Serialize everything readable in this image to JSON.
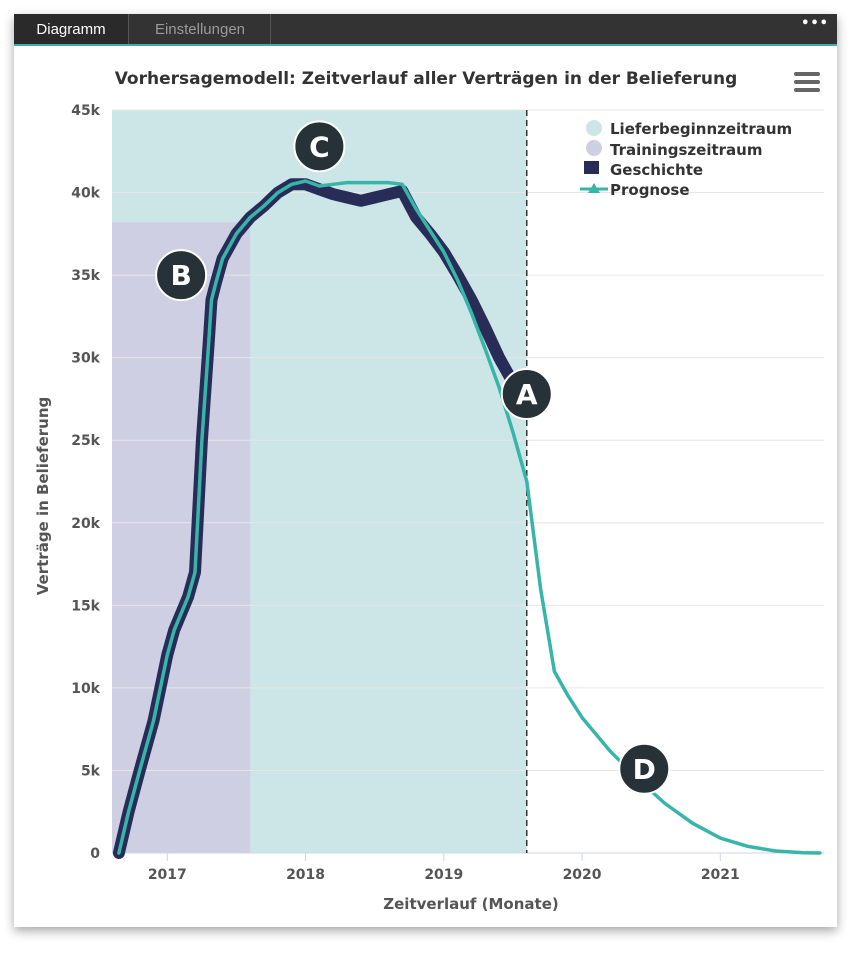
{
  "tabs": {
    "active_label": "Diagramm",
    "inactive_label": "Einstellungen",
    "more_icon": "•••"
  },
  "chart_data": {
    "type": "line",
    "title": "Vorhersagemodell: Zeitverlauf aller Verträgen in der Belieferung",
    "xlabel": "Zeitverlauf (Monate)",
    "ylabel": "Verträge in Belieferung",
    "xlim": [
      2016.6,
      2021.75
    ],
    "ylim": [
      0,
      45000
    ],
    "x_ticks": [
      "2017",
      "2018",
      "2019",
      "2020",
      "2021"
    ],
    "y_ticks": [
      "0",
      "5k",
      "10k",
      "15k",
      "20k",
      "25k",
      "30k",
      "35k",
      "40k",
      "45k"
    ],
    "grid": true,
    "legend_position": "top-right",
    "colors": {
      "lieferbeginn": "#cce5e6",
      "training": "#cfcfe4",
      "geschichte": "#272d57",
      "prognose": "#36b5a8",
      "badge": "#263238",
      "divider": "#333333"
    },
    "bands": [
      {
        "name": "Lieferbeginnzeitraum",
        "x_start": 2016.6,
        "x_end": 2019.6,
        "y_top": 45000
      },
      {
        "name": "Trainingszeitraum",
        "x_start": 2016.6,
        "x_end": 2017.6,
        "y_top": 38200
      }
    ],
    "vertical_line_x": 2019.6,
    "series": [
      {
        "name": "Geschichte",
        "x": [
          2016.65,
          2016.72,
          2016.8,
          2016.9,
          2017.0,
          2017.05,
          2017.1,
          2017.15,
          2017.2,
          2017.25,
          2017.3,
          2017.32,
          2017.35,
          2017.4,
          2017.5,
          2017.6,
          2017.7,
          2017.8,
          2017.9,
          2018.0,
          2018.1,
          2018.2,
          2018.3,
          2018.4,
          2018.5,
          2018.6,
          2018.7,
          2018.8,
          2018.9,
          2019.0,
          2019.1,
          2019.2,
          2019.3,
          2019.4,
          2019.5
        ],
        "values": [
          0,
          2500,
          5000,
          8000,
          12000,
          13500,
          14500,
          15500,
          17000,
          25000,
          31000,
          33500,
          34500,
          36000,
          37500,
          38500,
          39200,
          40000,
          40500,
          40500,
          40200,
          39900,
          39700,
          39500,
          39700,
          39900,
          40100,
          38500,
          37500,
          36400,
          35000,
          33500,
          31800,
          30000,
          28500
        ]
      },
      {
        "name": "Prognose",
        "x": [
          2016.65,
          2016.72,
          2016.8,
          2016.9,
          2017.0,
          2017.05,
          2017.1,
          2017.15,
          2017.2,
          2017.25,
          2017.3,
          2017.32,
          2017.35,
          2017.4,
          2017.5,
          2017.6,
          2017.7,
          2017.8,
          2017.9,
          2018.0,
          2018.1,
          2018.2,
          2018.3,
          2018.4,
          2018.5,
          2018.6,
          2018.7,
          2018.8,
          2018.9,
          2019.0,
          2019.1,
          2019.2,
          2019.3,
          2019.4,
          2019.5,
          2019.6,
          2019.7,
          2019.8,
          2019.9,
          2020.0,
          2020.2,
          2020.4,
          2020.6,
          2020.8,
          2021.0,
          2021.2,
          2021.4,
          2021.6,
          2021.72
        ],
        "values": [
          0,
          2500,
          5000,
          8000,
          12000,
          13500,
          14500,
          15500,
          17000,
          25000,
          31000,
          33500,
          34500,
          36000,
          37500,
          38500,
          39200,
          40000,
          40500,
          40700,
          40400,
          40500,
          40600,
          40600,
          40600,
          40600,
          40500,
          39000,
          37700,
          36400,
          34700,
          32700,
          30500,
          28200,
          25500,
          22500,
          16000,
          11000,
          9500,
          8200,
          6200,
          4500,
          3000,
          1800,
          900,
          400,
          120,
          20,
          0
        ]
      }
    ],
    "annotations": [
      {
        "label": "A",
        "x": 2019.6,
        "y": 27800
      },
      {
        "label": "B",
        "x": 2017.1,
        "y": 35000
      },
      {
        "label": "C",
        "x": 2018.1,
        "y": 42800
      },
      {
        "label": "D",
        "x": 2020.45,
        "y": 5100
      }
    ]
  }
}
